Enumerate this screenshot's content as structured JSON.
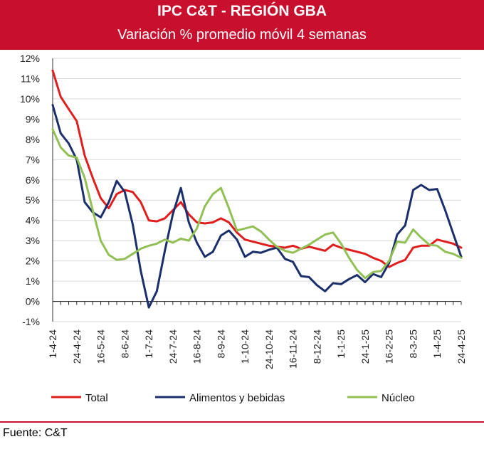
{
  "header": {
    "title": "IPC C&T - REGIÓN GBA",
    "subtitle": "Variación % promedio móvil 4 semanas"
  },
  "footer": {
    "source": "Fuente: C&T"
  },
  "colors": {
    "header": "#c8102e",
    "total": "#e01e1e",
    "alimentos": "#1a2f6b",
    "nucleo": "#92c055"
  },
  "chart_data": {
    "type": "line",
    "title": "IPC C&T - REGIÓN GBA",
    "subtitle": "Variación % promedio móvil 4 semanas",
    "xlabel": "",
    "ylabel": "",
    "ylim": [
      -1,
      12
    ],
    "yticks": [
      "-1%",
      "0%",
      "1%",
      "2%",
      "3%",
      "4%",
      "5%",
      "6%",
      "7%",
      "8%",
      "9%",
      "10%",
      "11%",
      "12%"
    ],
    "x_tick_labels": [
      "1-4-24",
      "24-4-24",
      "16-5-24",
      "8-6-24",
      "1-7-24",
      "24-7-24",
      "16-8-24",
      "8-9-24",
      "1-10-24",
      "24-10-24",
      "16-11-24",
      "8-12-24",
      "1-1-25",
      "24-1-25",
      "16-2-25",
      "8-3-25",
      "1-4-25",
      "24-4-25"
    ],
    "n_points": 52,
    "legend_position": "bottom",
    "series": [
      {
        "name": "Total",
        "color": "#e01e1e",
        "values": [
          11.4,
          10.1,
          9.5,
          8.9,
          7.2,
          6.1,
          5.1,
          4.6,
          5.3,
          5.5,
          5.4,
          4.9,
          4.0,
          3.95,
          4.1,
          4.5,
          4.9,
          4.3,
          3.9,
          3.85,
          3.9,
          4.1,
          3.9,
          3.4,
          3.05,
          2.95,
          2.85,
          2.75,
          2.7,
          2.65,
          2.75,
          2.6,
          2.7,
          2.6,
          2.5,
          2.8,
          2.65,
          2.55,
          2.45,
          2.35,
          2.15,
          2.0,
          1.7,
          1.9,
          2.05,
          2.65,
          2.75,
          2.75,
          3.05,
          2.95,
          2.85,
          2.65
        ]
      },
      {
        "name": "Alimentos y bebidas",
        "color": "#1a2f6b",
        "values": [
          9.7,
          8.3,
          7.8,
          7.0,
          4.9,
          4.4,
          4.15,
          4.9,
          5.95,
          5.4,
          3.8,
          1.5,
          -0.3,
          0.5,
          2.5,
          4.3,
          5.6,
          3.9,
          2.9,
          2.2,
          2.45,
          3.25,
          3.5,
          3.05,
          2.2,
          2.45,
          2.4,
          2.55,
          2.65,
          2.1,
          1.95,
          1.25,
          1.2,
          0.8,
          0.5,
          0.9,
          0.85,
          1.1,
          1.3,
          0.95,
          1.35,
          1.2,
          1.9,
          3.3,
          3.75,
          5.5,
          5.75,
          5.5,
          5.55,
          4.5,
          3.35,
          2.2
        ]
      },
      {
        "name": "Núcleo",
        "color": "#92c055",
        "values": [
          8.5,
          7.6,
          7.2,
          7.1,
          6.1,
          4.5,
          3.0,
          2.3,
          2.05,
          2.1,
          2.35,
          2.6,
          2.75,
          2.85,
          3.05,
          2.9,
          3.1,
          3.0,
          3.6,
          4.7,
          5.3,
          5.6,
          4.6,
          3.5,
          3.6,
          3.7,
          3.45,
          3.05,
          2.7,
          2.5,
          2.4,
          2.6,
          2.8,
          3.05,
          3.3,
          3.4,
          2.85,
          2.15,
          1.55,
          1.15,
          1.45,
          1.5,
          2.0,
          2.95,
          2.9,
          3.55,
          3.15,
          2.8,
          2.75,
          2.45,
          2.35,
          2.15
        ]
      }
    ]
  }
}
